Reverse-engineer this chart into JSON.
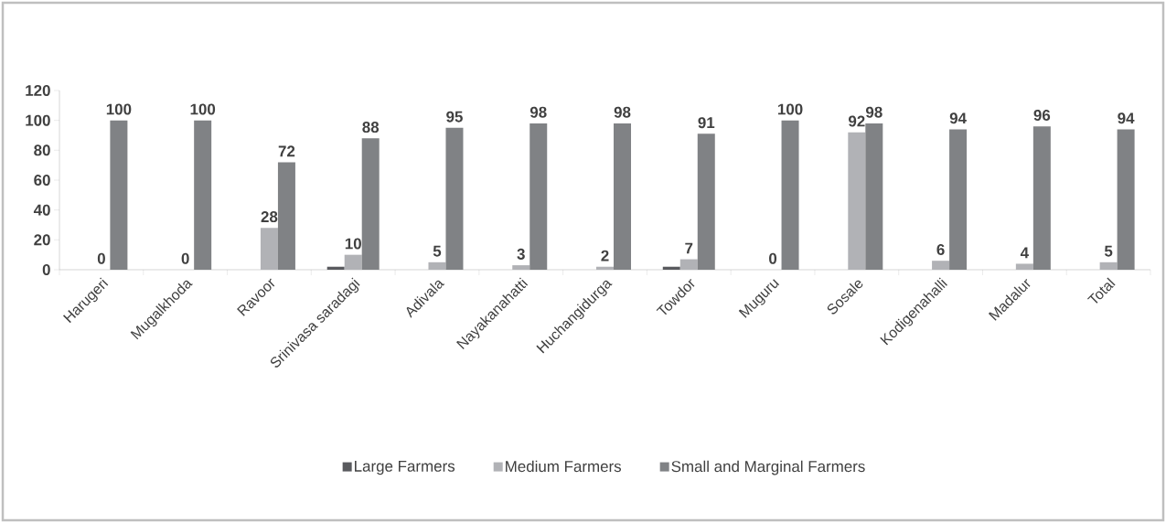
{
  "chart_data": {
    "type": "bar",
    "categories": [
      "Harugeri",
      "Mugalkhoda",
      "Ravoor",
      "Srinivasa saradagi",
      "Adivala",
      "Nayakanahatti",
      "Huchangidurga",
      "Towdor",
      "Muguru",
      "Sosale",
      "Kodigenahalli",
      "Madalur",
      "Total"
    ],
    "series": [
      {
        "name": "Large Farmers",
        "color": "#595a5e",
        "values": [
          0,
          0,
          0,
          2,
          0,
          0,
          0,
          2,
          0,
          0,
          0,
          0,
          0
        ]
      },
      {
        "name": "Medium Farmers",
        "color": "#b1b2b6",
        "values": [
          0,
          0,
          28,
          10,
          5,
          3,
          2,
          7,
          0,
          92,
          6,
          4,
          5
        ],
        "value_labels": [
          "0",
          "0",
          "28",
          "10",
          "5",
          "3",
          "2",
          "7",
          "0",
          "92",
          "6",
          "4",
          "5"
        ]
      },
      {
        "name": "Small  and Marginal Farmers",
        "color": "#808285",
        "values": [
          100,
          100,
          72,
          88,
          95,
          98,
          98,
          91,
          100,
          98,
          94,
          96,
          94
        ],
        "value_labels": [
          "100",
          "100",
          "72",
          "88",
          "95",
          "98",
          "98",
          "91",
          "100",
          "98",
          "94",
          "96",
          "94"
        ]
      }
    ],
    "ylim": [
      0,
      120
    ],
    "yticks": [
      0,
      20,
      40,
      60,
      80,
      100,
      120
    ],
    "legend": "bottom"
  }
}
